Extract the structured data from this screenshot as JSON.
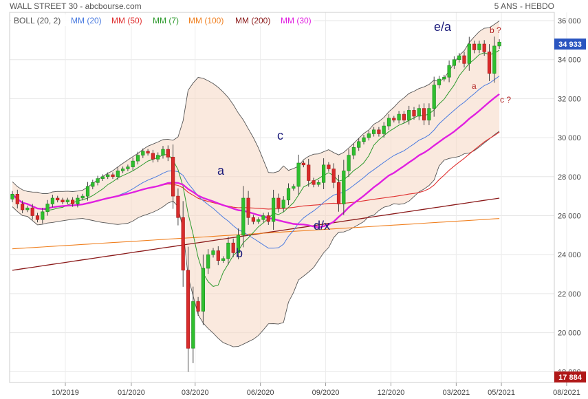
{
  "header": {
    "title": "WALL STREET 30 - abcbourse.com",
    "period": "5 ANS - HEBDO"
  },
  "legend": [
    {
      "label": "BOLL (20, 2)",
      "color": "#555555"
    },
    {
      "label": "MM (20)",
      "color": "#4a7be0"
    },
    {
      "label": "MM (50)",
      "color": "#e03030"
    },
    {
      "label": "MM (7)",
      "color": "#2e9a2e"
    },
    {
      "label": "MM (100)",
      "color": "#f08020"
    },
    {
      "label": "MM (200)",
      "color": "#8b1a1a"
    },
    {
      "label": "MM (30)",
      "color": "#e020e0"
    }
  ],
  "badges": {
    "last": {
      "label": "34 933",
      "value": 34933,
      "color": "#2a55c0"
    },
    "low": {
      "label": "17 884",
      "value": 17884,
      "color": "#b01818"
    }
  },
  "annotations": {
    "a": "a",
    "b": "b",
    "c": "c",
    "dx": "d/x",
    "ea": "e/a",
    "b_q": "b ?",
    "a_small": "a",
    "c_q": "c ?"
  },
  "chart_data": {
    "type": "candlestick",
    "ylim": [
      17884,
      36000
    ],
    "y_ticks": [
      "36 000",
      "34 000",
      "32 000",
      "30 000",
      "28 000",
      "26 000",
      "24 000",
      "22 000",
      "20 000",
      "18 000"
    ],
    "x_ticks": [
      "10/2019",
      "01/2020",
      "03/2020",
      "06/2020",
      "09/2020",
      "12/2020",
      "03/2021",
      "05/2021",
      "08/2021"
    ],
    "x_tick_dates": [
      "2019-10-01",
      "2020-01-01",
      "2020-03-30",
      "2020-06-29",
      "2020-09-28",
      "2020-12-28",
      "2021-03-29",
      "2021-05-31",
      "2021-08-30"
    ],
    "series": [
      {
        "name": "WALL STREET 30",
        "type": "weekly-candles",
        "close": [
          27100,
          26600,
          26300,
          26400,
          26000,
          25800,
          26200,
          26600,
          26900,
          26800,
          26700,
          26800,
          26600,
          26900,
          27000,
          27500,
          27700,
          27900,
          28000,
          28100,
          28000,
          28300,
          28400,
          28500,
          28800,
          29100,
          29300,
          29200,
          28900,
          29100,
          29400,
          29000,
          27000,
          25900,
          23200,
          19200,
          21600,
          21100,
          23300,
          24000,
          24200,
          23700,
          23800,
          24600,
          24100,
          25000,
          26900,
          25900,
          25700,
          25800,
          26000,
          25700,
          26900,
          26400,
          26800,
          27400,
          27500,
          28700,
          28600,
          27800,
          27600,
          27700,
          28600,
          28400,
          27700,
          26600,
          28300,
          29100,
          29500,
          29800,
          30000,
          30200,
          30400,
          30200,
          30600,
          31000,
          30900,
          31200,
          30900,
          31400,
          31100,
          31500,
          30900,
          31500,
          32700,
          33000,
          33100,
          33700,
          34000,
          34200,
          33800,
          34800,
          34500,
          34800,
          34400,
          33300,
          34700,
          34900
        ]
      }
    ]
  }
}
